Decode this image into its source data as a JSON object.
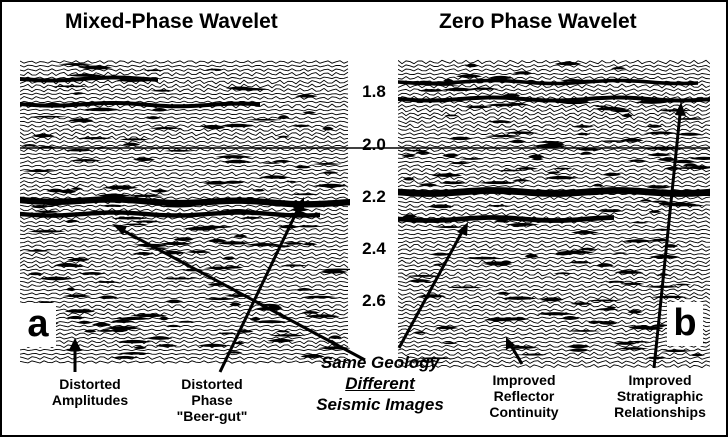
{
  "titles": {
    "left": "Mixed-Phase Wavelet",
    "right": "Zero Phase Wavelet"
  },
  "time_axis": {
    "ticks": [
      "1.8",
      "2.0",
      "2.2",
      "2.4",
      "2.6"
    ]
  },
  "panel_labels": {
    "left": "a",
    "right": "b"
  },
  "captions": {
    "distorted_amplitudes": [
      "Distorted",
      "Amplitudes"
    ],
    "distorted_phase": [
      "Distorted",
      "Phase",
      "\"Beer-gut\""
    ],
    "improved_reflector": [
      "Improved",
      "Reflector",
      "Continuity"
    ],
    "improved_stratigraphic": [
      "Improved",
      "Stratigraphic",
      "Relationships"
    ]
  },
  "center_caption": {
    "line1": "Same Geology",
    "line2": "Different",
    "line3": "Seismic Images"
  },
  "colors": {
    "ink": "#000000",
    "paper": "#ffffff"
  }
}
